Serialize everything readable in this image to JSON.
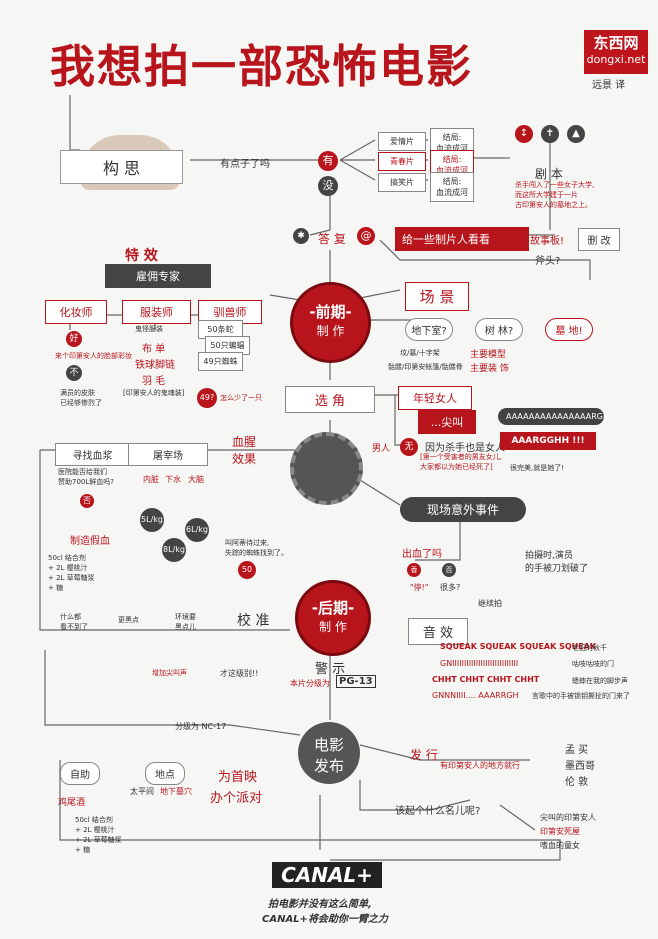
{
  "title": "我想拍一部恐怖电影",
  "brand": {
    "name": "东西网",
    "url": "dongxi.net",
    "credit": "远景 译"
  },
  "concept": {
    "label": "构 思",
    "question": "有点子了吗",
    "yes": "有",
    "no": "没",
    "genres": [
      "爱情片",
      "青春片",
      "搞笑片"
    ],
    "ending": "结局:\n血流成河",
    "script_label": "剧 本",
    "script_text": "杀手闯入了一些女子大学,\n而这所大学建于一片\n古印第安人的墓地之上。",
    "storyboard": "故事板!",
    "revise": "删 改",
    "axe": "斧头?"
  },
  "reply": {
    "label": "答 复",
    "action": "给一些制片人看看"
  },
  "effects": {
    "title": "特 效",
    "hire": "雇佣专家",
    "makeup": "化妆师",
    "costume": "服装师",
    "tamer": "驯兽师",
    "good": "好",
    "nope": "不",
    "makeup_note": "来个印第安人的脸部彩妆",
    "makeup_bad": "满员的皮肤\n已经够惨烈了",
    "costume_items": [
      "鬼怪服装",
      "布 单",
      "铁球脚链",
      "羽 毛"
    ],
    "costume_note": "[印第安人的鬼魂装]",
    "animals": [
      "50条蛇",
      "50只蝙蝠",
      "49只蜘蛛"
    ],
    "missing": "49?",
    "missing_note": "怎么少了一只"
  },
  "preprod": {
    "label1": "-前期-",
    "label2": "制 作"
  },
  "location": {
    "title": "场 景",
    "opts": [
      "地下室?",
      "树 林?",
      "墓 地!"
    ],
    "models": "主要模型",
    "costume": "主要装 饰",
    "models_note": "坟/墓/十字架",
    "costume_note": "骷髅/印第安帐篷/骷髅骨"
  },
  "casting": {
    "title": "选 角",
    "girl": "年轻女人",
    "scream": "...尖叫",
    "man": "男人",
    "none": "无",
    "reason": "因为杀手也是女人",
    "reason2": "[第一个受害者的男友女儿,\n大家都以为她已经死了]",
    "screams": [
      "AAAAAAAAAAAAAAARGH!",
      "AAARGGHH !!!"
    ],
    "praise": "很完美,就是她了!"
  },
  "gore": {
    "title1": "血腥",
    "title2": "效果",
    "find": "寻找血浆",
    "slaughter": "屠宰场",
    "budget": "医院能否给我们\n赞助700L鲜血吗?",
    "no": "否",
    "fake": "制造假血",
    "parts": [
      "内脏",
      "下水",
      "大脑"
    ],
    "prices": [
      "5L/kg",
      "8L/kg",
      "6L/kg"
    ],
    "spider_note": "叫阿蒂待过来,\n失踪的蜘蛛找到了。",
    "fifty": "50",
    "recipe": "50cl 结合剂\n+ 2L 樱桃汁\n+ 2L 草莓糖浆\n+ 糖"
  },
  "accident": {
    "label": "现场意外事件",
    "blood": "出血了吗",
    "yes": "香",
    "no": "否",
    "stop": "\"停!\"",
    "many": "很多?",
    "continue": "继续拍",
    "cut": "拍摄时,演员\n的手被刀划破了"
  },
  "postprod": {
    "label1": "-后期-",
    "label2": "制 作",
    "calibrate": "校 准",
    "shades": [
      "什么都\n看不到了",
      "更黑点",
      "环境要\n黑点儿"
    ],
    "sound": "音 效",
    "sounds": [
      "SQUEAK SQUEAK SQUEAK SQUEAK",
      "GNIIIIIIIIIIIIIIIIIIIIIIIIIIII",
      "CHHT CHHT CHHT CHHT",
      "GNNNIIII.... AAARRGH"
    ],
    "sound_notes": [
      "老旧的秋千",
      "咕吱咕吱的门",
      "蟋蟀在我的脚步声",
      "言歌中的手被锁钥撕扯的门来了"
    ],
    "warning": "警 示",
    "warn_note": "本片分级为",
    "rating": "PG-13",
    "more": "才这级别!!",
    "add": "增加尖叫声",
    "nc": "分级为 NC-17"
  },
  "release": {
    "label1": "电影",
    "label2": "发布",
    "distribute": "发 行",
    "where": "有印第安人的地方就行",
    "countries": [
      "孟 买",
      "墨西哥",
      "伦 敦"
    ],
    "premiere1": "为首映",
    "premiere2": "办个派对",
    "self": "自助",
    "spot": "地点",
    "pacific": "太平间",
    "basement": "地下墓穴",
    "cocktail": "鸡尾酒",
    "recipe": "50cl 结合剂\n+ 2L 樱桃汁\n+ 2L 草莓糖浆\n+ 糖",
    "name_q": "该起个什么名儿呢?",
    "names": [
      "尖叫的印第安人",
      "印第安死屋",
      "嗜血的童女"
    ]
  },
  "footer": {
    "logo": "CANAL+",
    "line1": "拍电影并没有这么简单,",
    "line2": "CANAL+将会助你一臂之力"
  }
}
